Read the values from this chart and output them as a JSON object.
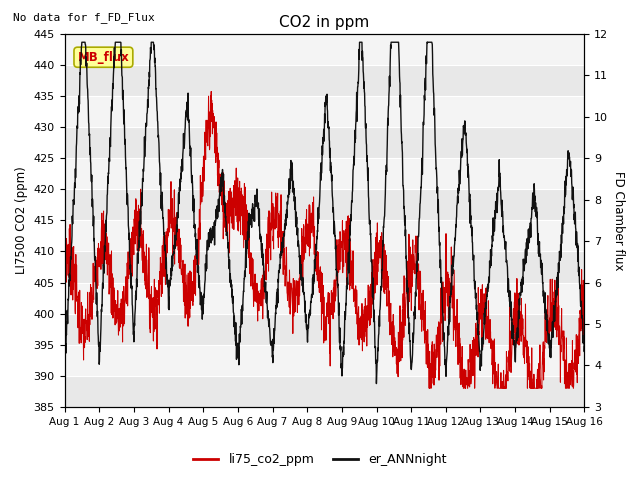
{
  "title": "CO2 in ppm",
  "ylabel_left": "LI7500 CO2 (ppm)",
  "ylabel_right": "FD Chamber flux",
  "ylim_left": [
    385,
    445
  ],
  "ylim_right": [
    3.0,
    12.0
  ],
  "yticks_left": [
    385,
    390,
    395,
    400,
    405,
    410,
    415,
    420,
    425,
    430,
    435,
    440,
    445
  ],
  "yticks_right": [
    3.0,
    4.0,
    5.0,
    6.0,
    7.0,
    8.0,
    9.0,
    10.0,
    11.0,
    12.0
  ],
  "nodata_text": "No data for f_FD_Flux",
  "mb_flux_label": "MB_flux",
  "legend_red": "li75_co2_ppm",
  "legend_black": "er_ANNnight",
  "bg_color": "#e8e8e8",
  "strip_color": "#f4f4f4",
  "red_color": "#cc0000",
  "black_color": "#111111",
  "n_days": 15,
  "pts_per_day": 144,
  "figsize": [
    6.4,
    4.8
  ],
  "dpi": 100
}
